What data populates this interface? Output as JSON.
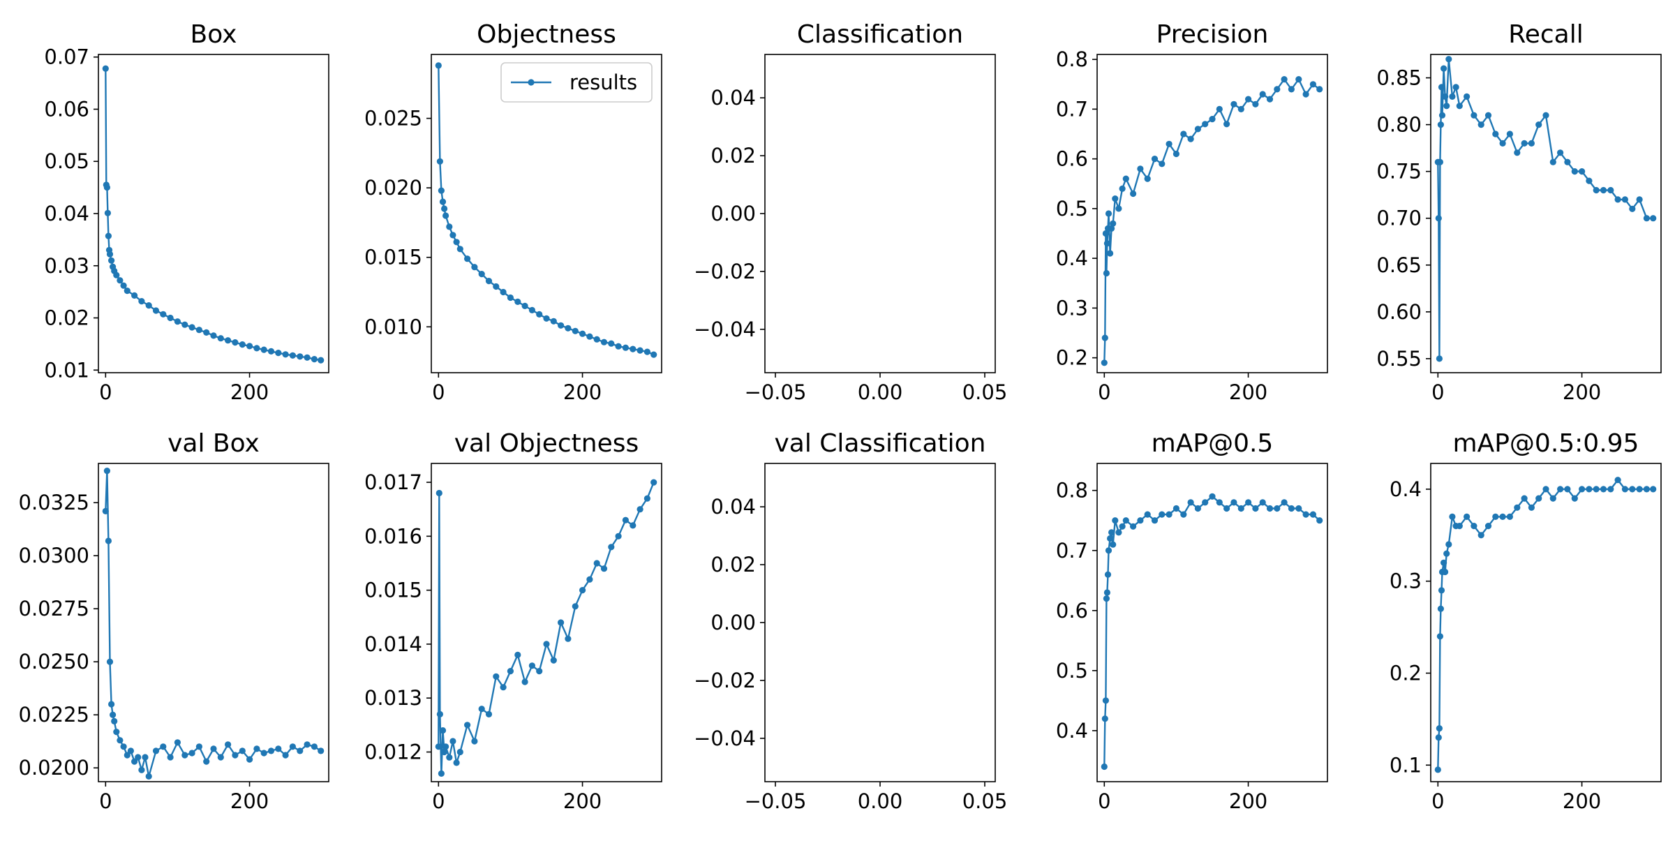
{
  "figure": {
    "accent_color": "#1f77b4",
    "legend_label": "results",
    "legend_placement": "top-right (Objectness panel)"
  },
  "chart_data": [
    {
      "type": "line",
      "title": "Box",
      "xlim": [
        -10,
        310
      ],
      "ylim": [
        0.0095,
        0.0705
      ],
      "x_ticks": [
        0,
        200
      ],
      "x_tick_labels": [
        "0",
        "200"
      ],
      "y_ticks": [
        0.01,
        0.02,
        0.03,
        0.04,
        0.05,
        0.06,
        0.07
      ],
      "y_tick_labels": [
        "0.01",
        "0.02",
        "0.03",
        "0.04",
        "0.05",
        "0.06",
        "0.07"
      ],
      "series": [
        {
          "name": "results",
          "x": [
            0,
            1,
            2,
            3,
            4,
            5,
            6,
            8,
            10,
            12,
            15,
            20,
            25,
            30,
            40,
            50,
            60,
            70,
            80,
            90,
            100,
            110,
            120,
            130,
            140,
            150,
            160,
            170,
            180,
            190,
            200,
            210,
            220,
            230,
            240,
            250,
            260,
            270,
            280,
            290,
            299
          ],
          "values": [
            0.0678,
            0.0455,
            0.045,
            0.0401,
            0.0357,
            0.033,
            0.0322,
            0.031,
            0.0298,
            0.029,
            0.0282,
            0.0272,
            0.0262,
            0.0252,
            0.0243,
            0.0232,
            0.0224,
            0.0214,
            0.0207,
            0.02,
            0.0193,
            0.0187,
            0.0182,
            0.0177,
            0.0172,
            0.0166,
            0.0161,
            0.0157,
            0.0153,
            0.0149,
            0.0146,
            0.0142,
            0.0139,
            0.0136,
            0.0133,
            0.013,
            0.0128,
            0.0126,
            0.0124,
            0.0121,
            0.0119
          ]
        }
      ]
    },
    {
      "type": "line",
      "title": "Objectness",
      "xlim": [
        -10,
        310
      ],
      "ylim": [
        0.0067,
        0.0296
      ],
      "x_ticks": [
        0,
        200
      ],
      "x_tick_labels": [
        "0",
        "200"
      ],
      "y_ticks": [
        0.01,
        0.015,
        0.02,
        0.025
      ],
      "y_tick_labels": [
        "0.010",
        "0.015",
        "0.020",
        "0.025"
      ],
      "legend": [
        "results"
      ],
      "series": [
        {
          "name": "results",
          "x": [
            0,
            2,
            4,
            6,
            8,
            10,
            15,
            20,
            25,
            30,
            40,
            50,
            60,
            70,
            80,
            90,
            100,
            110,
            120,
            130,
            140,
            150,
            160,
            170,
            180,
            190,
            200,
            210,
            220,
            230,
            240,
            250,
            260,
            270,
            280,
            290,
            299
          ],
          "values": [
            0.0288,
            0.0219,
            0.0198,
            0.019,
            0.0185,
            0.018,
            0.0172,
            0.0166,
            0.0161,
            0.0156,
            0.0149,
            0.0143,
            0.0138,
            0.0133,
            0.0129,
            0.0125,
            0.0121,
            0.0118,
            0.0115,
            0.0112,
            0.0109,
            0.0106,
            0.0104,
            0.0101,
            0.0099,
            0.0097,
            0.0095,
            0.0093,
            0.0091,
            0.0089,
            0.0088,
            0.0086,
            0.0085,
            0.0084,
            0.0083,
            0.0082,
            0.008
          ]
        }
      ]
    },
    {
      "type": "line",
      "title": "Classification",
      "xlim": [
        -0.055,
        0.055
      ],
      "ylim": [
        -0.055,
        0.055
      ],
      "x_ticks": [
        -0.05,
        0,
        0.05
      ],
      "x_tick_labels": [
        "−0.05",
        "0.00",
        "0.05"
      ],
      "y_ticks": [
        -0.04,
        -0.02,
        0,
        0.02,
        0.04
      ],
      "y_tick_labels": [
        "−0.04",
        "−0.02",
        "0.00",
        "0.02",
        "0.04"
      ],
      "series": []
    },
    {
      "type": "line",
      "title": "Precision",
      "xlim": [
        -10,
        310
      ],
      "ylim": [
        0.17,
        0.81
      ],
      "x_ticks": [
        0,
        200
      ],
      "x_tick_labels": [
        "0",
        "200"
      ],
      "y_ticks": [
        0.2,
        0.3,
        0.4,
        0.5,
        0.6,
        0.7,
        0.8
      ],
      "y_tick_labels": [
        "0.2",
        "0.3",
        "0.4",
        "0.5",
        "0.6",
        "0.7",
        "0.8"
      ],
      "series": [
        {
          "name": "results",
          "x": [
            0,
            1,
            2,
            3,
            4,
            5,
            6,
            8,
            10,
            12,
            15,
            20,
            25,
            30,
            40,
            50,
            60,
            70,
            80,
            90,
            100,
            110,
            120,
            130,
            140,
            150,
            160,
            170,
            180,
            190,
            200,
            210,
            220,
            230,
            240,
            250,
            260,
            270,
            280,
            290,
            299
          ],
          "values": [
            0.19,
            0.24,
            0.45,
            0.37,
            0.43,
            0.46,
            0.49,
            0.41,
            0.46,
            0.47,
            0.52,
            0.5,
            0.54,
            0.56,
            0.53,
            0.58,
            0.56,
            0.6,
            0.59,
            0.63,
            0.61,
            0.65,
            0.64,
            0.66,
            0.67,
            0.68,
            0.7,
            0.67,
            0.71,
            0.7,
            0.72,
            0.71,
            0.73,
            0.72,
            0.74,
            0.76,
            0.74,
            0.76,
            0.73,
            0.75,
            0.74
          ]
        }
      ]
    },
    {
      "type": "line",
      "title": "Recall",
      "xlim": [
        -10,
        310
      ],
      "ylim": [
        0.535,
        0.875
      ],
      "x_ticks": [
        0,
        200
      ],
      "x_tick_labels": [
        "0",
        "200"
      ],
      "y_ticks": [
        0.55,
        0.6,
        0.65,
        0.7,
        0.75,
        0.8,
        0.85
      ],
      "y_tick_labels": [
        "0.55",
        "0.60",
        "0.65",
        "0.70",
        "0.75",
        "0.80",
        "0.85"
      ],
      "series": [
        {
          "name": "results",
          "x": [
            0,
            1,
            2,
            3,
            4,
            5,
            6,
            8,
            10,
            12,
            15,
            20,
            25,
            30,
            40,
            50,
            60,
            70,
            80,
            90,
            100,
            110,
            120,
            130,
            140,
            150,
            160,
            170,
            180,
            190,
            200,
            210,
            220,
            230,
            240,
            250,
            260,
            270,
            280,
            290,
            299
          ],
          "values": [
            0.76,
            0.7,
            0.55,
            0.76,
            0.8,
            0.84,
            0.81,
            0.86,
            0.83,
            0.82,
            0.87,
            0.83,
            0.84,
            0.82,
            0.83,
            0.81,
            0.8,
            0.81,
            0.79,
            0.78,
            0.79,
            0.77,
            0.78,
            0.78,
            0.8,
            0.81,
            0.76,
            0.77,
            0.76,
            0.75,
            0.75,
            0.74,
            0.73,
            0.73,
            0.73,
            0.72,
            0.72,
            0.71,
            0.72,
            0.7,
            0.7
          ]
        }
      ]
    },
    {
      "type": "line",
      "title": "val Box",
      "xlim": [
        -10,
        310
      ],
      "ylim": [
        0.01935,
        0.03435
      ],
      "x_ticks": [
        0,
        200
      ],
      "x_tick_labels": [
        "0",
        "200"
      ],
      "y_ticks": [
        0.02,
        0.0225,
        0.025,
        0.0275,
        0.03,
        0.0325
      ],
      "y_tick_labels": [
        "0.0200",
        "0.0225",
        "0.0250",
        "0.0275",
        "0.0300",
        "0.0325"
      ],
      "series": [
        {
          "name": "results",
          "x": [
            0,
            2,
            4,
            6,
            8,
            10,
            12,
            15,
            20,
            25,
            30,
            35,
            40,
            45,
            50,
            55,
            60,
            70,
            80,
            90,
            100,
            110,
            120,
            130,
            140,
            150,
            160,
            170,
            180,
            190,
            200,
            210,
            220,
            230,
            240,
            250,
            260,
            270,
            280,
            290,
            299
          ],
          "values": [
            0.0321,
            0.034,
            0.0307,
            0.025,
            0.023,
            0.0225,
            0.0222,
            0.0217,
            0.0213,
            0.021,
            0.0206,
            0.0208,
            0.0203,
            0.0205,
            0.0199,
            0.0205,
            0.0196,
            0.0208,
            0.021,
            0.0205,
            0.0212,
            0.0206,
            0.0207,
            0.021,
            0.0203,
            0.0209,
            0.0205,
            0.0211,
            0.0206,
            0.0208,
            0.0204,
            0.0209,
            0.0207,
            0.0208,
            0.0209,
            0.0206,
            0.021,
            0.0208,
            0.0211,
            0.021,
            0.0208
          ]
        }
      ]
    },
    {
      "type": "line",
      "title": "val Objectness",
      "xlim": [
        -10,
        310
      ],
      "ylim": [
        0.01145,
        0.01735
      ],
      "x_ticks": [
        0,
        200
      ],
      "x_tick_labels": [
        "0",
        "200"
      ],
      "y_ticks": [
        0.012,
        0.013,
        0.014,
        0.015,
        0.016,
        0.017
      ],
      "y_tick_labels": [
        "0.012",
        "0.013",
        "0.014",
        "0.015",
        "0.016",
        "0.017"
      ],
      "series": [
        {
          "name": "results",
          "x": [
            0,
            1,
            2,
            4,
            6,
            8,
            10,
            15,
            20,
            25,
            30,
            40,
            50,
            60,
            70,
            80,
            90,
            100,
            110,
            120,
            130,
            140,
            150,
            160,
            170,
            180,
            190,
            200,
            210,
            220,
            230,
            240,
            250,
            260,
            270,
            280,
            290,
            299
          ],
          "values": [
            0.0121,
            0.0168,
            0.0127,
            0.0116,
            0.0124,
            0.012,
            0.0121,
            0.0119,
            0.0122,
            0.0118,
            0.012,
            0.0125,
            0.0122,
            0.0128,
            0.0127,
            0.0134,
            0.0132,
            0.0135,
            0.0138,
            0.0133,
            0.0136,
            0.0135,
            0.014,
            0.0137,
            0.0144,
            0.0141,
            0.0147,
            0.015,
            0.0152,
            0.0155,
            0.0154,
            0.0158,
            0.016,
            0.0163,
            0.0162,
            0.0165,
            0.0167,
            0.017
          ]
        }
      ]
    },
    {
      "type": "line",
      "title": "val Classification",
      "xlim": [
        -0.055,
        0.055
      ],
      "ylim": [
        -0.055,
        0.055
      ],
      "x_ticks": [
        -0.05,
        0,
        0.05
      ],
      "x_tick_labels": [
        "−0.05",
        "0.00",
        "0.05"
      ],
      "y_ticks": [
        -0.04,
        -0.02,
        0,
        0.02,
        0.04
      ],
      "y_tick_labels": [
        "−0.04",
        "−0.02",
        "0.00",
        "0.02",
        "0.04"
      ],
      "series": []
    },
    {
      "type": "line",
      "title": "mAP@0.5",
      "xlim": [
        -10,
        310
      ],
      "ylim": [
        0.315,
        0.845
      ],
      "x_ticks": [
        0,
        200
      ],
      "x_tick_labels": [
        "0",
        "200"
      ],
      "y_ticks": [
        0.4,
        0.5,
        0.6,
        0.7,
        0.8
      ],
      "y_tick_labels": [
        "0.4",
        "0.5",
        "0.6",
        "0.7",
        "0.8"
      ],
      "series": [
        {
          "name": "results",
          "x": [
            0,
            1,
            2,
            3,
            4,
            5,
            6,
            8,
            10,
            12,
            15,
            20,
            25,
            30,
            40,
            50,
            60,
            70,
            80,
            90,
            100,
            110,
            120,
            130,
            140,
            150,
            160,
            170,
            180,
            190,
            200,
            210,
            220,
            230,
            240,
            250,
            260,
            270,
            280,
            290,
            299
          ],
          "values": [
            0.34,
            0.42,
            0.45,
            0.62,
            0.63,
            0.66,
            0.7,
            0.72,
            0.73,
            0.71,
            0.75,
            0.73,
            0.74,
            0.75,
            0.74,
            0.75,
            0.76,
            0.75,
            0.76,
            0.76,
            0.77,
            0.76,
            0.78,
            0.77,
            0.78,
            0.79,
            0.78,
            0.77,
            0.78,
            0.77,
            0.78,
            0.77,
            0.78,
            0.77,
            0.77,
            0.78,
            0.77,
            0.77,
            0.76,
            0.76,
            0.75
          ]
        }
      ]
    },
    {
      "type": "line",
      "title": "mAP@0.5:0.95",
      "xlim": [
        -10,
        310
      ],
      "ylim": [
        0.082,
        0.428
      ],
      "x_ticks": [
        0,
        200
      ],
      "x_tick_labels": [
        "0",
        "200"
      ],
      "y_ticks": [
        0.1,
        0.2,
        0.3,
        0.4
      ],
      "y_tick_labels": [
        "0.1",
        "0.2",
        "0.3",
        "0.4"
      ],
      "series": [
        {
          "name": "results",
          "x": [
            0,
            1,
            2,
            3,
            4,
            5,
            6,
            8,
            10,
            12,
            15,
            20,
            25,
            30,
            40,
            50,
            60,
            70,
            80,
            90,
            100,
            110,
            120,
            130,
            140,
            150,
            160,
            170,
            180,
            190,
            200,
            210,
            220,
            230,
            240,
            250,
            260,
            270,
            280,
            290,
            299
          ],
          "values": [
            0.095,
            0.13,
            0.14,
            0.24,
            0.27,
            0.29,
            0.31,
            0.32,
            0.31,
            0.33,
            0.34,
            0.37,
            0.36,
            0.36,
            0.37,
            0.36,
            0.35,
            0.36,
            0.37,
            0.37,
            0.37,
            0.38,
            0.39,
            0.38,
            0.39,
            0.4,
            0.39,
            0.4,
            0.4,
            0.39,
            0.4,
            0.4,
            0.4,
            0.4,
            0.4,
            0.41,
            0.4,
            0.4,
            0.4,
            0.4,
            0.4
          ]
        }
      ]
    }
  ]
}
